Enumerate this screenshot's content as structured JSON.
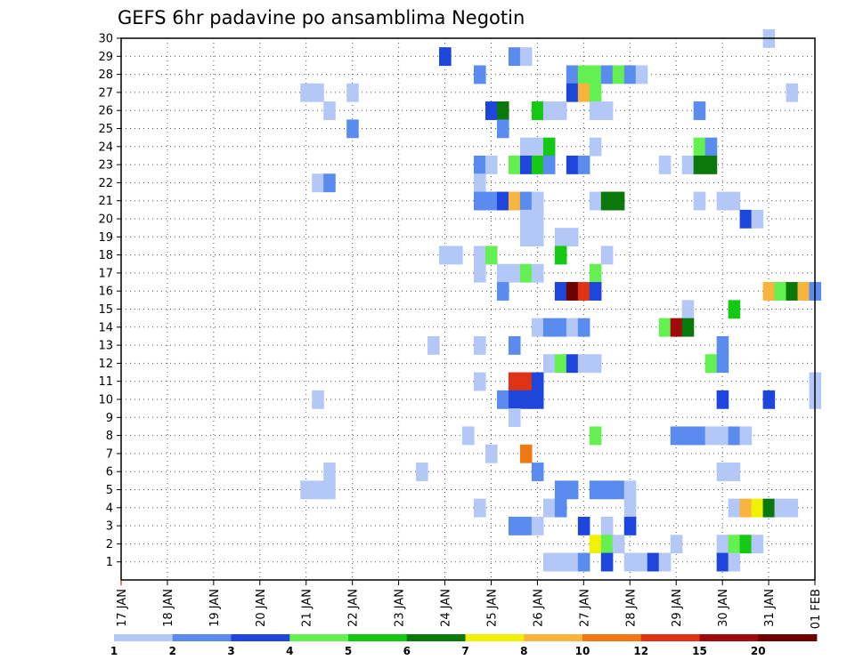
{
  "chart_data": {
    "type": "heatmap",
    "title": "GEFS 6hr padavine po ansamblima Negotin",
    "y_tick_labels": [
      "1",
      "2",
      "3",
      "4",
      "5",
      "6",
      "7",
      "8",
      "9",
      "10",
      "11",
      "12",
      "13",
      "14",
      "15",
      "16",
      "17",
      "18",
      "19",
      "20",
      "21",
      "22",
      "23",
      "24",
      "25",
      "26",
      "27",
      "28",
      "29",
      "30"
    ],
    "x_tick_labels": [
      "17 JAN",
      "18 JAN",
      "19 JAN",
      "20 JAN",
      "21 JAN",
      "22 JAN",
      "23 JAN",
      "24 JAN",
      "25 JAN",
      "26 JAN",
      "27 JAN",
      "28 JAN",
      "29 JAN",
      "30 JAN",
      "31 JAN",
      "01 FEB"
    ],
    "x_range_days": [
      17,
      32
    ],
    "y_range": [
      0,
      30
    ],
    "step_hours": 6,
    "colorbar": {
      "colors": [
        "#b4c8f8",
        "#5a8cf0",
        "#1e46dc",
        "#64f050",
        "#14c814",
        "#0a780a",
        "#f0f000",
        "#f8b43c",
        "#f07814",
        "#e03214",
        "#a00a0a",
        "#6e0000"
      ],
      "labels": [
        "1",
        "2",
        "3",
        "4",
        "5",
        "6",
        "7",
        "8",
        "10",
        "12",
        "15",
        "20"
      ]
    },
    "cells": [
      [
        30,
        31.0,
        0
      ],
      [
        29,
        24.0,
        2
      ],
      [
        29,
        25.5,
        1
      ],
      [
        29,
        25.75,
        0
      ],
      [
        28,
        24.75,
        1
      ],
      [
        28,
        26.75,
        1
      ],
      [
        28,
        27.0,
        3
      ],
      [
        28,
        27.25,
        3
      ],
      [
        28,
        27.5,
        1
      ],
      [
        28,
        27.75,
        3
      ],
      [
        28,
        28.0,
        1
      ],
      [
        28,
        28.25,
        0
      ],
      [
        27,
        21.0,
        0
      ],
      [
        27,
        21.25,
        0
      ],
      [
        27,
        22.0,
        0
      ],
      [
        27,
        26.75,
        2
      ],
      [
        27,
        27.0,
        7
      ],
      [
        27,
        27.25,
        3
      ],
      [
        27,
        31.5,
        0
      ],
      [
        26,
        21.5,
        0
      ],
      [
        26,
        25.0,
        2
      ],
      [
        26,
        25.25,
        5
      ],
      [
        26,
        26.0,
        4
      ],
      [
        26,
        26.25,
        0
      ],
      [
        26,
        26.5,
        0
      ],
      [
        26,
        27.25,
        0
      ],
      [
        26,
        27.5,
        0
      ],
      [
        26,
        29.5,
        1
      ],
      [
        25,
        22.0,
        1
      ],
      [
        25,
        25.25,
        1
      ],
      [
        24,
        25.75,
        0
      ],
      [
        24,
        26.0,
        0
      ],
      [
        24,
        26.25,
        4
      ],
      [
        24,
        27.25,
        0
      ],
      [
        24,
        29.5,
        3
      ],
      [
        24,
        29.75,
        1
      ],
      [
        23,
        24.75,
        1
      ],
      [
        23,
        25.0,
        0
      ],
      [
        23,
        25.5,
        3
      ],
      [
        23,
        25.75,
        2
      ],
      [
        23,
        26.0,
        4
      ],
      [
        23,
        26.25,
        1
      ],
      [
        23,
        26.75,
        2
      ],
      [
        23,
        27.0,
        1
      ],
      [
        23,
        28.75,
        0
      ],
      [
        23,
        29.25,
        0
      ],
      [
        23,
        29.5,
        5
      ],
      [
        23,
        29.75,
        5
      ],
      [
        22,
        21.25,
        0
      ],
      [
        22,
        21.5,
        1
      ],
      [
        22,
        24.75,
        0
      ],
      [
        21,
        24.75,
        1
      ],
      [
        21,
        25.0,
        1
      ],
      [
        21,
        25.25,
        2
      ],
      [
        21,
        25.5,
        7
      ],
      [
        21,
        25.75,
        1
      ],
      [
        21,
        26.0,
        0
      ],
      [
        21,
        27.25,
        0
      ],
      [
        21,
        27.5,
        5
      ],
      [
        21,
        27.75,
        5
      ],
      [
        21,
        29.5,
        0
      ],
      [
        21,
        30.0,
        0
      ],
      [
        21,
        30.25,
        0
      ],
      [
        20,
        25.75,
        0
      ],
      [
        20,
        26.0,
        0
      ],
      [
        20,
        30.5,
        2
      ],
      [
        20,
        30.75,
        0
      ],
      [
        19,
        25.75,
        0
      ],
      [
        19,
        26.0,
        0
      ],
      [
        19,
        26.5,
        0
      ],
      [
        19,
        26.75,
        0
      ],
      [
        18,
        24.0,
        0
      ],
      [
        18,
        24.25,
        0
      ],
      [
        18,
        24.75,
        0
      ],
      [
        18,
        25.0,
        3
      ],
      [
        18,
        26.5,
        4
      ],
      [
        18,
        27.5,
        0
      ],
      [
        17,
        24.75,
        0
      ],
      [
        17,
        25.25,
        0
      ],
      [
        17,
        25.5,
        0
      ],
      [
        17,
        25.75,
        3
      ],
      [
        17,
        26.0,
        0
      ],
      [
        17,
        27.25,
        3
      ],
      [
        16,
        25.25,
        1
      ],
      [
        16,
        26.5,
        2
      ],
      [
        16,
        26.75,
        11
      ],
      [
        16,
        27.0,
        9
      ],
      [
        16,
        27.25,
        2
      ],
      [
        16,
        31.0,
        7
      ],
      [
        16,
        31.25,
        3
      ],
      [
        16,
        31.5,
        5
      ],
      [
        16,
        31.75,
        7
      ],
      [
        16,
        32.0,
        1
      ],
      [
        15,
        29.25,
        0
      ],
      [
        15,
        30.25,
        4
      ],
      [
        14,
        26.0,
        0
      ],
      [
        14,
        26.25,
        1
      ],
      [
        14,
        26.5,
        1
      ],
      [
        14,
        26.75,
        0
      ],
      [
        14,
        27.0,
        1
      ],
      [
        14,
        28.75,
        3
      ],
      [
        14,
        29.0,
        10
      ],
      [
        14,
        29.25,
        5
      ],
      [
        13,
        23.75,
        0
      ],
      [
        13,
        24.75,
        0
      ],
      [
        13,
        25.5,
        1
      ],
      [
        13,
        30.0,
        1
      ],
      [
        12,
        26.25,
        0
      ],
      [
        12,
        26.5,
        3
      ],
      [
        12,
        26.75,
        2
      ],
      [
        12,
        27.0,
        0
      ],
      [
        12,
        27.25,
        0
      ],
      [
        12,
        29.75,
        3
      ],
      [
        12,
        30.0,
        1
      ],
      [
        11,
        24.75,
        0
      ],
      [
        11,
        25.5,
        9
      ],
      [
        11,
        25.75,
        9
      ],
      [
        11,
        26.0,
        2
      ],
      [
        11,
        32.0,
        0
      ],
      [
        10,
        21.25,
        0
      ],
      [
        10,
        25.25,
        1
      ],
      [
        10,
        25.5,
        2
      ],
      [
        10,
        25.75,
        2
      ],
      [
        10,
        26.0,
        2
      ],
      [
        10,
        30.0,
        2
      ],
      [
        10,
        31.0,
        2
      ],
      [
        10,
        32.0,
        0
      ],
      [
        9,
        25.5,
        0
      ],
      [
        8,
        24.5,
        0
      ],
      [
        8,
        27.25,
        3
      ],
      [
        8,
        29.0,
        1
      ],
      [
        8,
        29.25,
        1
      ],
      [
        8,
        29.5,
        1
      ],
      [
        8,
        29.75,
        0
      ],
      [
        8,
        30.0,
        0
      ],
      [
        8,
        30.25,
        1
      ],
      [
        8,
        30.5,
        0
      ],
      [
        7,
        25.0,
        0
      ],
      [
        7,
        25.75,
        8
      ],
      [
        6,
        21.5,
        0
      ],
      [
        6,
        23.5,
        0
      ],
      [
        6,
        26.0,
        1
      ],
      [
        6,
        30.0,
        0
      ],
      [
        6,
        30.25,
        0
      ],
      [
        5,
        21.0,
        0
      ],
      [
        5,
        21.25,
        0
      ],
      [
        5,
        21.5,
        0
      ],
      [
        5,
        26.5,
        1
      ],
      [
        5,
        26.75,
        1
      ],
      [
        5,
        27.25,
        1
      ],
      [
        5,
        27.5,
        1
      ],
      [
        5,
        27.75,
        1
      ],
      [
        5,
        28.0,
        0
      ],
      [
        4,
        24.75,
        0
      ],
      [
        4,
        26.25,
        0
      ],
      [
        4,
        26.5,
        1
      ],
      [
        4,
        28.0,
        0
      ],
      [
        4,
        30.25,
        0
      ],
      [
        4,
        30.5,
        7
      ],
      [
        4,
        30.75,
        6
      ],
      [
        4,
        31.0,
        5
      ],
      [
        4,
        31.25,
        0
      ],
      [
        4,
        31.5,
        0
      ],
      [
        3,
        25.5,
        1
      ],
      [
        3,
        25.75,
        1
      ],
      [
        3,
        26.0,
        0
      ],
      [
        3,
        27.0,
        2
      ],
      [
        3,
        27.5,
        0
      ],
      [
        3,
        28.0,
        2
      ],
      [
        2,
        27.25,
        6
      ],
      [
        2,
        27.5,
        3
      ],
      [
        2,
        27.75,
        0
      ],
      [
        2,
        29.0,
        0
      ],
      [
        2,
        30.0,
        0
      ],
      [
        2,
        30.25,
        3
      ],
      [
        2,
        30.5,
        4
      ],
      [
        2,
        30.75,
        0
      ],
      [
        1,
        26.25,
        0
      ],
      [
        1,
        26.5,
        0
      ],
      [
        1,
        26.75,
        0
      ],
      [
        1,
        27.0,
        1
      ],
      [
        1,
        27.5,
        2
      ],
      [
        1,
        28.0,
        0
      ],
      [
        1,
        28.25,
        0
      ],
      [
        1,
        28.5,
        2
      ],
      [
        1,
        28.75,
        0
      ],
      [
        1,
        30.0,
        2
      ],
      [
        1,
        30.25,
        0
      ]
    ]
  }
}
